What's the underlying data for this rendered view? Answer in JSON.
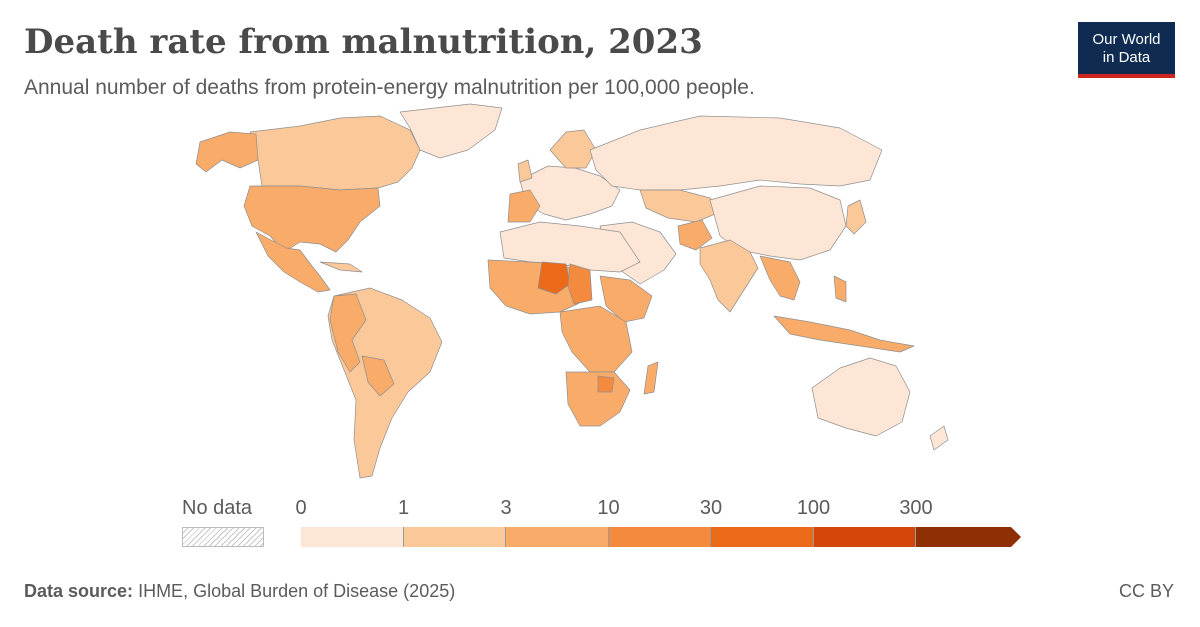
{
  "header": {
    "title": "Death rate from malnutrition, 2023",
    "subtitle": "Annual number of deaths from protein-energy malnutrition per 100,000 people."
  },
  "logo": {
    "line1": "Our World",
    "line2": "in Data",
    "bg": "#0f2b52",
    "accent": "#ce261e"
  },
  "legend": {
    "no_data_label": "No data",
    "ticks": [
      "0",
      "1",
      "3",
      "10",
      "30",
      "100",
      "300"
    ],
    "colors": [
      "#fde6d5",
      "#fbc89a",
      "#f9ab6a",
      "#f48a3e",
      "#ea6a19",
      "#d4450a",
      "#8e2f06"
    ]
  },
  "footer": {
    "source_label": "Data source:",
    "source_text": "IHME, Global Burden of Disease (2025)",
    "license": "CC BY"
  }
}
